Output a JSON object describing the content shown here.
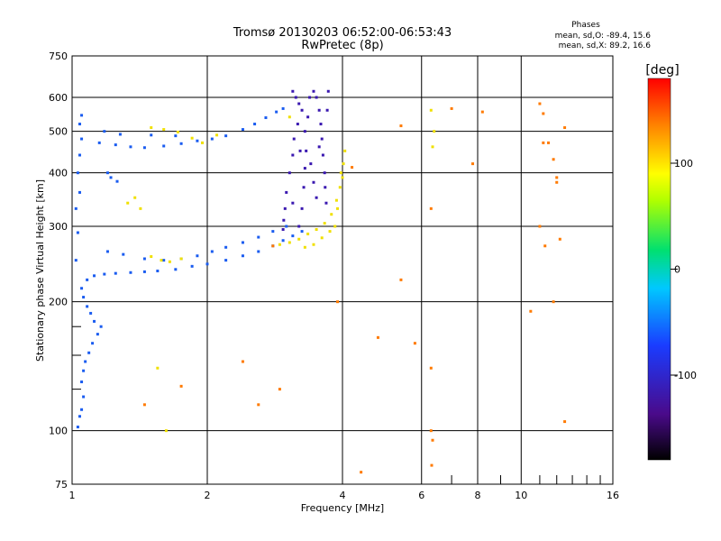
{
  "chart_data": {
    "type": "scatter",
    "title": "Tromsø 20130203 06:52:00-06:53:43",
    "subtitle": "RwPretec (8p)",
    "stats": {
      "title": "Phases",
      "line1": "mean, sd,O: -89.4, 15.6",
      "line2": "mean, sd,X:  89.2, 16.6"
    },
    "xlabel": "Frequency [MHz]",
    "ylabel": "Stationary phase Virtual Height [km]",
    "xscale": "log",
    "yscale": "log",
    "xlim": [
      1,
      16
    ],
    "ylim": [
      75,
      750
    ],
    "xticks": [
      1,
      2,
      4,
      6,
      8,
      10,
      16
    ],
    "yticks": [
      75,
      100,
      200,
      300,
      400,
      500,
      600,
      750
    ],
    "grid": true,
    "colorbar": {
      "label": "[deg]",
      "min": -180,
      "max": 180,
      "ticks": [
        100,
        0,
        -100
      ]
    },
    "colors": {
      "o_mode": "#1a5cf0",
      "x_mode": "#f0e000",
      "dark": "#3a18b0"
    },
    "series": [
      {
        "mode": "O",
        "phase": -90,
        "points": [
          [
            1.03,
            102
          ],
          [
            1.04,
            108
          ],
          [
            1.05,
            112
          ],
          [
            1.06,
            120
          ],
          [
            1.05,
            130
          ],
          [
            1.06,
            138
          ],
          [
            1.07,
            145
          ],
          [
            1.09,
            152
          ],
          [
            1.11,
            160
          ],
          [
            1.14,
            168
          ],
          [
            1.16,
            175
          ],
          [
            1.12,
            180
          ],
          [
            1.1,
            188
          ],
          [
            1.08,
            195
          ],
          [
            1.06,
            205
          ],
          [
            1.05,
            215
          ],
          [
            1.08,
            225
          ],
          [
            1.12,
            230
          ],
          [
            1.18,
            232
          ],
          [
            1.25,
            233
          ],
          [
            1.35,
            234
          ],
          [
            1.45,
            235
          ],
          [
            1.55,
            236
          ],
          [
            1.7,
            238
          ],
          [
            1.85,
            242
          ],
          [
            2.0,
            245
          ],
          [
            2.2,
            250
          ],
          [
            2.4,
            256
          ],
          [
            2.6,
            262
          ],
          [
            2.8,
            270
          ],
          [
            2.95,
            278
          ],
          [
            3.1,
            285
          ],
          [
            3.25,
            292
          ],
          [
            1.2,
            262
          ],
          [
            1.3,
            258
          ],
          [
            1.45,
            252
          ],
          [
            1.6,
            250
          ],
          [
            1.75,
            252
          ],
          [
            1.9,
            256
          ],
          [
            2.05,
            262
          ],
          [
            2.2,
            268
          ],
          [
            2.4,
            275
          ],
          [
            2.6,
            283
          ],
          [
            2.8,
            292
          ],
          [
            3.0,
            300
          ],
          [
            1.02,
            250
          ],
          [
            1.03,
            290
          ],
          [
            1.02,
            330
          ],
          [
            1.04,
            360
          ],
          [
            1.03,
            400
          ],
          [
            1.04,
            440
          ],
          [
            1.05,
            480
          ],
          [
            1.04,
            520
          ],
          [
            1.05,
            545
          ],
          [
            1.15,
            470
          ],
          [
            1.25,
            465
          ],
          [
            1.35,
            460
          ],
          [
            1.45,
            458
          ],
          [
            1.6,
            462
          ],
          [
            1.75,
            468
          ],
          [
            1.9,
            475
          ],
          [
            2.05,
            480
          ],
          [
            2.2,
            488
          ],
          [
            2.4,
            505
          ],
          [
            2.55,
            520
          ],
          [
            2.7,
            538
          ],
          [
            2.85,
            555
          ],
          [
            2.95,
            565
          ],
          [
            1.18,
            500
          ],
          [
            1.28,
            492
          ],
          [
            1.5,
            490
          ],
          [
            1.7,
            488
          ],
          [
            1.22,
            390
          ],
          [
            1.26,
            382
          ],
          [
            1.2,
            400
          ]
        ]
      },
      {
        "mode": "X",
        "phase": 90,
        "points": [
          [
            1.33,
            340
          ],
          [
            1.38,
            350
          ],
          [
            1.42,
            330
          ],
          [
            1.5,
            255
          ],
          [
            1.58,
            250
          ],
          [
            1.65,
            248
          ],
          [
            1.75,
            252
          ],
          [
            1.5,
            510
          ],
          [
            1.6,
            505
          ],
          [
            1.72,
            498
          ],
          [
            1.85,
            482
          ],
          [
            1.95,
            470
          ],
          [
            2.1,
            490
          ],
          [
            2.9,
            272
          ],
          [
            3.05,
            275
          ],
          [
            3.2,
            280
          ],
          [
            3.35,
            288
          ],
          [
            3.5,
            295
          ],
          [
            3.65,
            305
          ],
          [
            3.78,
            320
          ],
          [
            3.88,
            345
          ],
          [
            3.95,
            370
          ],
          [
            4.0,
            390
          ],
          [
            4.02,
            420
          ],
          [
            3.3,
            268
          ],
          [
            3.45,
            272
          ],
          [
            3.6,
            282
          ],
          [
            3.75,
            292
          ],
          [
            3.85,
            300
          ],
          [
            3.9,
            330
          ],
          [
            3.97,
            400
          ],
          [
            4.05,
            450
          ],
          [
            1.55,
            140
          ],
          [
            1.62,
            100
          ],
          [
            3.05,
            540
          ],
          [
            6.3,
            560
          ],
          [
            6.4,
            500
          ],
          [
            6.35,
            460
          ]
        ]
      },
      {
        "mode": "O",
        "phase": -120,
        "points": [
          [
            3.1,
            620
          ],
          [
            3.15,
            600
          ],
          [
            3.2,
            580
          ],
          [
            3.25,
            560
          ],
          [
            3.18,
            520
          ],
          [
            3.12,
            480
          ],
          [
            3.1,
            440
          ],
          [
            3.05,
            400
          ],
          [
            3.0,
            360
          ],
          [
            2.98,
            330
          ],
          [
            2.96,
            310
          ],
          [
            2.95,
            295
          ],
          [
            3.2,
            300
          ],
          [
            3.25,
            330
          ],
          [
            3.28,
            370
          ],
          [
            3.3,
            410
          ],
          [
            3.32,
            450
          ],
          [
            3.3,
            500
          ],
          [
            3.35,
            540
          ],
          [
            3.38,
            600
          ],
          [
            3.45,
            620
          ],
          [
            3.5,
            600
          ],
          [
            3.55,
            560
          ],
          [
            3.58,
            520
          ],
          [
            3.6,
            480
          ],
          [
            3.62,
            440
          ],
          [
            3.65,
            400
          ],
          [
            3.66,
            370
          ],
          [
            3.68,
            340
          ],
          [
            3.7,
            560
          ],
          [
            3.72,
            620
          ],
          [
            3.4,
            420
          ],
          [
            3.45,
            380
          ],
          [
            3.5,
            350
          ],
          [
            3.1,
            340
          ],
          [
            3.22,
            450
          ],
          [
            3.55,
            460
          ]
        ]
      },
      {
        "mode": "scatter",
        "phase": 150,
        "points": [
          [
            6.3,
            330
          ],
          [
            6.3,
            100
          ],
          [
            6.32,
            83
          ],
          [
            11.0,
            580
          ],
          [
            11.2,
            550
          ],
          [
            11.5,
            470
          ],
          [
            11.8,
            430
          ],
          [
            12.0,
            390
          ],
          [
            12.5,
            510
          ],
          [
            11.0,
            300
          ],
          [
            11.3,
            270
          ],
          [
            12.2,
            280
          ],
          [
            5.8,
            160
          ],
          [
            4.8,
            165
          ],
          [
            10.5,
            190
          ],
          [
            11.8,
            200
          ],
          [
            12.5,
            105
          ],
          [
            4.4,
            80
          ],
          [
            6.3,
            140
          ],
          [
            6.35,
            95
          ],
          [
            2.8,
            270
          ],
          [
            2.4,
            145
          ],
          [
            2.6,
            115
          ],
          [
            2.9,
            125
          ],
          [
            1.75,
            127
          ],
          [
            1.45,
            115
          ],
          [
            3.9,
            200
          ],
          [
            4.2,
            412
          ],
          [
            5.4,
            515
          ],
          [
            7.0,
            565
          ],
          [
            8.2,
            555
          ],
          [
            7.8,
            420
          ],
          [
            11.2,
            470
          ],
          [
            5.4,
            225
          ],
          [
            12.0,
            380
          ]
        ]
      }
    ]
  }
}
